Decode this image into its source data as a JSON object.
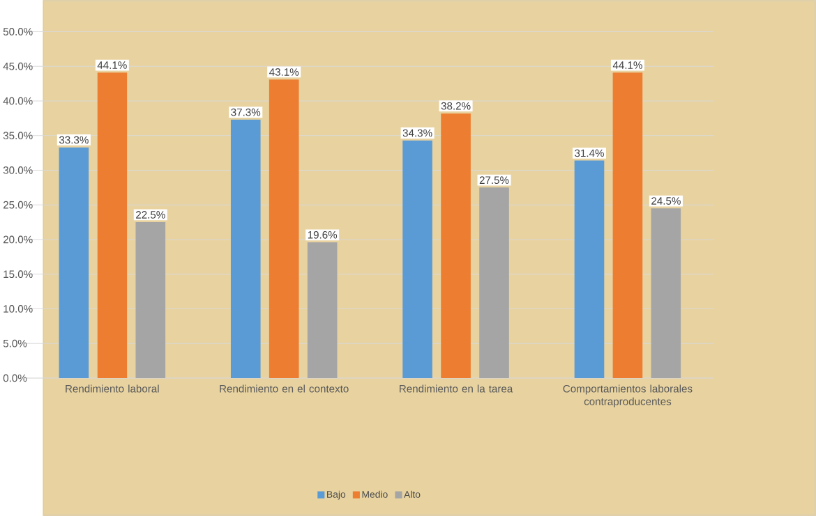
{
  "chart_data": {
    "type": "bar",
    "categories": [
      "Rendimiento laboral",
      "Rendimiento en el contexto",
      "Rendimiento en la tarea",
      "Comportamientos laborales contraproducentes"
    ],
    "series": [
      {
        "name": "Bajo",
        "color": "#5b9bd5",
        "values": [
          33.3,
          37.3,
          34.3,
          31.4
        ],
        "value_labels": [
          "33.3%",
          "37.3%",
          "34.3%",
          "31.4%"
        ]
      },
      {
        "name": "Medio",
        "color": "#ed7d31",
        "values": [
          44.1,
          43.1,
          38.2,
          44.1
        ],
        "value_labels": [
          "44.1%",
          "43.1%",
          "38.2%",
          "44.1%"
        ]
      },
      {
        "name": "Alto",
        "color": "#a5a5a5",
        "values": [
          22.5,
          19.6,
          27.5,
          24.5
        ],
        "value_labels": [
          "22.5%",
          "19.6%",
          "27.5%",
          "24.5%"
        ]
      }
    ],
    "ylim": [
      0,
      50
    ],
    "yticks": [
      {
        "value": 0,
        "label": "0.0%"
      },
      {
        "value": 5,
        "label": "5.0%"
      },
      {
        "value": 10,
        "label": "10.0%"
      },
      {
        "value": 15,
        "label": "15.0%"
      },
      {
        "value": 20,
        "label": "20.0%"
      },
      {
        "value": 25,
        "label": "25.0%"
      },
      {
        "value": 30,
        "label": "30.0%"
      },
      {
        "value": 35,
        "label": "35.0%"
      },
      {
        "value": 40,
        "label": "40.0%"
      },
      {
        "value": 45,
        "label": "45.0%"
      },
      {
        "value": 50,
        "label": "50.0%"
      }
    ],
    "grid": "y",
    "legend": "bottom"
  }
}
